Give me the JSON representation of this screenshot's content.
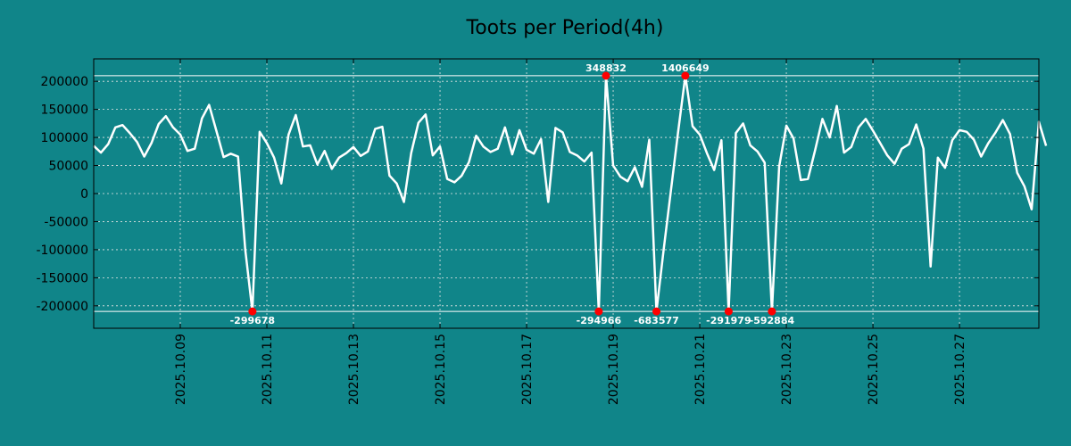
{
  "chart_data": {
    "type": "line",
    "title": "Toots per Period(4h)",
    "xlabel": "",
    "ylabel": "",
    "colors": {
      "background": "#108589",
      "line": "#ffffff",
      "marker": "#ff0000",
      "grid": "#e6e6e6",
      "frame": "#000000"
    },
    "grid": true,
    "x_range": [
      0,
      131
    ],
    "ylim": [
      -240000,
      240000
    ],
    "y_ticks": [
      {
        "value": 200000,
        "label": "200000"
      },
      {
        "value": 150000,
        "label": "150000"
      },
      {
        "value": 100000,
        "label": "100000"
      },
      {
        "value": 50000,
        "label": "50000"
      },
      {
        "value": 0,
        "label": "0"
      },
      {
        "value": -50000,
        "label": "-50000"
      },
      {
        "value": -100000,
        "label": "-100000"
      },
      {
        "value": -150000,
        "label": "-150000"
      },
      {
        "value": -200000,
        "label": "-200000"
      }
    ],
    "x_ticks": [
      {
        "index": 12,
        "label": "2025.10.09"
      },
      {
        "index": 24,
        "label": "2025.10.11"
      },
      {
        "index": 36,
        "label": "2025.10.13"
      },
      {
        "index": 48,
        "label": "2025.10.15"
      },
      {
        "index": 60,
        "label": "2025.10.17"
      },
      {
        "index": 72,
        "label": "2025.10.19"
      },
      {
        "index": 84,
        "label": "2025.10.21"
      },
      {
        "index": 96,
        "label": "2025.10.23"
      },
      {
        "index": 108,
        "label": "2025.10.25"
      },
      {
        "index": 120,
        "label": "2025.10.27"
      }
    ],
    "clip": {
      "upper": 210000,
      "lower": -210000
    },
    "values": [
      85000,
      73000,
      88000,
      118000,
      122000,
      108000,
      92000,
      66000,
      90000,
      124000,
      138000,
      118000,
      105000,
      76000,
      80000,
      134000,
      158000,
      112000,
      65000,
      71000,
      66000,
      -100000,
      -210000,
      110000,
      90000,
      64000,
      18000,
      105000,
      140000,
      84000,
      86000,
      52000,
      76000,
      44000,
      64000,
      72000,
      83000,
      67000,
      75000,
      115000,
      119000,
      32000,
      18000,
      -15000,
      72000,
      126000,
      141000,
      68000,
      84000,
      26000,
      20000,
      32000,
      56000,
      103000,
      84000,
      74000,
      80000,
      118000,
      70000,
      113000,
      78000,
      71000,
      97000,
      -15000,
      117000,
      109000,
      74000,
      68000,
      57000,
      73000,
      -210000,
      210000,
      50000,
      30000,
      22000,
      47000,
      12000,
      96000,
      -210000,
      -100000,
      5000,
      110000,
      210000,
      120000,
      105000,
      72000,
      42000,
      95000,
      -210000,
      108000,
      125000,
      86000,
      75000,
      55000,
      -210000,
      48000,
      121000,
      98000,
      24000,
      26000,
      78000,
      133000,
      100000,
      156000,
      73000,
      83000,
      118000,
      133000,
      112000,
      90000,
      68000,
      53000,
      80000,
      88000,
      123000,
      80000,
      -130000,
      64000,
      46000,
      95000,
      113000,
      110000,
      96000,
      66000,
      90000,
      109000,
      131000,
      106000,
      37000,
      13000,
      -28000,
      128000,
      85000
    ],
    "clipped_points": [
      {
        "index": 22,
        "position": "lower",
        "actual": -299678,
        "label": "-299678"
      },
      {
        "index": 70,
        "position": "lower",
        "actual": -294966,
        "label": "-294966"
      },
      {
        "index": 71,
        "position": "upper",
        "actual": 348832,
        "label": "348832"
      },
      {
        "index": 78,
        "position": "lower",
        "actual": -683577,
        "label": "-683577"
      },
      {
        "index": 82,
        "position": "upper",
        "actual": 1406649,
        "label": "1406649"
      },
      {
        "index": 88,
        "position": "lower",
        "actual": -291979,
        "label": "-291979"
      },
      {
        "index": 94,
        "position": "lower",
        "actual": -592884,
        "label": "-592884"
      }
    ]
  }
}
